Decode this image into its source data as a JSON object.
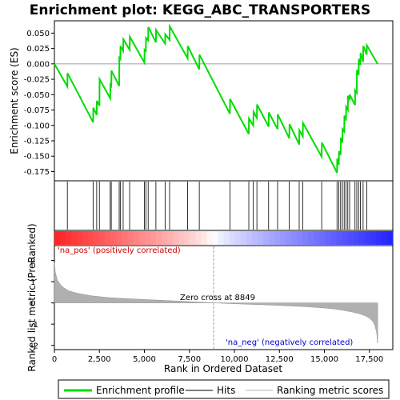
{
  "colors": {
    "es_line": "#00dd00",
    "hit_line": "#000000",
    "metric_fill": "#b0b0b0",
    "zero_cross_line": "#a0a0a0",
    "pos_label": "#cc0000",
    "neg_label": "#0000cc",
    "bar_red": "#ff0000",
    "bar_blue": "#0000ff"
  },
  "legend": {
    "items": [
      {
        "label": "Enrichment profile",
        "color": "#00dd00",
        "icon": "green-line-icon"
      },
      {
        "label": "Hits",
        "color": "#000000",
        "icon": "black-line-icon"
      },
      {
        "label": "Ranking metric scores",
        "color": "#b0b0b0",
        "icon": "gray-line-icon"
      }
    ]
  },
  "chart_data": [
    {
      "type": "line",
      "title": "Enrichment plot: KEGG_ABC_TRANSPORTERS",
      "ylabel": "Enrichment score (ES)",
      "xlim": [
        0,
        18800
      ],
      "ylim": [
        -0.19,
        0.07
      ],
      "yticks": [
        0.05,
        0.025,
        0.0,
        -0.025,
        -0.05,
        -0.075,
        -0.1,
        -0.125,
        -0.15,
        -0.175
      ],
      "ytick_labels": [
        "0.050",
        "0.025",
        "0.000",
        "-0.025",
        "-0.050",
        "-0.075",
        "-0.100",
        "-0.125",
        "-0.150",
        "-0.175"
      ],
      "grid": false,
      "series": [
        {
          "name": "Enrichment profile",
          "x": [
            0,
            720,
            730,
            2150,
            2160,
            2350,
            2360,
            2500,
            2510,
            3100,
            3110,
            3160,
            3170,
            3600,
            3610,
            3660,
            3670,
            3820,
            3830,
            4180,
            4190,
            5000,
            5010,
            5080,
            5090,
            5210,
            5220,
            5640,
            5650,
            6150,
            6160,
            6400,
            6410,
            7400,
            7410,
            8050,
            8060,
            9750,
            9760,
            10800,
            10810,
            11050,
            11060,
            11250,
            11260,
            11900,
            11910,
            12400,
            12410,
            13050,
            13060,
            13600,
            13610,
            13800,
            13810,
            14850,
            14860,
            15700,
            15710,
            15800,
            15810,
            15900,
            15910,
            16000,
            16010,
            16100,
            16110,
            16200,
            16210,
            16300,
            16310,
            16400,
            16410,
            16700,
            16710,
            16800,
            16810,
            16900,
            16910,
            17000,
            17010,
            17150,
            17160,
            17350,
            17360,
            17950
          ],
          "y": [
            0.0,
            -0.037,
            -0.015,
            -0.095,
            -0.071,
            -0.083,
            -0.06,
            -0.068,
            -0.025,
            -0.056,
            -0.034,
            -0.036,
            -0.011,
            -0.036,
            0.01,
            0.008,
            0.029,
            0.021,
            0.04,
            0.023,
            0.044,
            0.002,
            0.023,
            0.021,
            0.042,
            0.038,
            0.06,
            0.035,
            0.055,
            0.033,
            0.048,
            0.039,
            0.061,
            0.009,
            0.029,
            -0.009,
            0.015,
            -0.081,
            -0.057,
            -0.114,
            -0.089,
            -0.1,
            -0.078,
            -0.088,
            -0.066,
            -0.102,
            -0.079,
            -0.106,
            -0.082,
            -0.121,
            -0.098,
            -0.131,
            -0.108,
            -0.118,
            -0.096,
            -0.151,
            -0.128,
            -0.177,
            -0.154,
            -0.164,
            -0.142,
            -0.148,
            -0.12,
            -0.128,
            -0.106,
            -0.11,
            -0.084,
            -0.092,
            -0.07,
            -0.075,
            -0.052,
            -0.057,
            -0.05,
            -0.067,
            -0.043,
            -0.047,
            -0.01,
            -0.018,
            0.008,
            -0.002,
            0.018,
            0.003,
            0.029,
            0.015,
            0.03,
            0.0
          ]
        }
      ],
      "hits": [
        720,
        2150,
        2350,
        2500,
        3100,
        3160,
        3600,
        3660,
        3820,
        4180,
        5000,
        5080,
        5210,
        5640,
        6150,
        6400,
        7400,
        8050,
        9750,
        10800,
        11050,
        11250,
        11900,
        12400,
        13050,
        13600,
        13800,
        14850,
        15700,
        15800,
        15900,
        16000,
        16100,
        16200,
        16300,
        16400,
        16700,
        16800,
        16900,
        17000,
        17150,
        17350
      ]
    },
    {
      "type": "area",
      "xlabel": "Rank in Ordered Dataset",
      "ylabel": "Ranked list metric (PreRanked)",
      "xlim": [
        0,
        18800
      ],
      "ylim": [
        -2.2,
        2.7
      ],
      "xticks": [
        0,
        2500,
        5000,
        7500,
        10000,
        12500,
        15000,
        17500
      ],
      "xtick_labels": [
        "0",
        "2,500",
        "5,000",
        "7,500",
        "10,000",
        "12,500",
        "15,000",
        "17,500"
      ],
      "yticks": [
        2,
        1,
        0,
        -1,
        -2
      ],
      "ytick_labels": [
        "2",
        "1",
        "0",
        "-1",
        "-2"
      ],
      "grid": false,
      "series": [
        {
          "name": "Ranking metric scores",
          "x": [
            0,
            50,
            150,
            300,
            500,
            800,
            1200,
            2000,
            3000,
            4000,
            5000,
            6000,
            7000,
            8000,
            8849,
            10000,
            11000,
            12000,
            13000,
            14000,
            15000,
            15500,
            16000,
            16500,
            17000,
            17300,
            17500,
            17700,
            17800,
            17900,
            17960
          ],
          "y": [
            1.9,
            1.45,
            1.1,
            0.9,
            0.72,
            0.57,
            0.47,
            0.34,
            0.25,
            0.2,
            0.16,
            0.12,
            0.08,
            0.04,
            0.0,
            -0.04,
            -0.07,
            -0.1,
            -0.14,
            -0.18,
            -0.24,
            -0.28,
            -0.34,
            -0.42,
            -0.52,
            -0.62,
            -0.72,
            -0.88,
            -1.05,
            -1.4,
            -1.9
          ]
        }
      ],
      "zero_cross": 8849,
      "annotations": [
        "Zero cross at 8849",
        "'na_pos' (positively correlated)",
        "'na_neg' (negatively correlated)"
      ]
    }
  ]
}
